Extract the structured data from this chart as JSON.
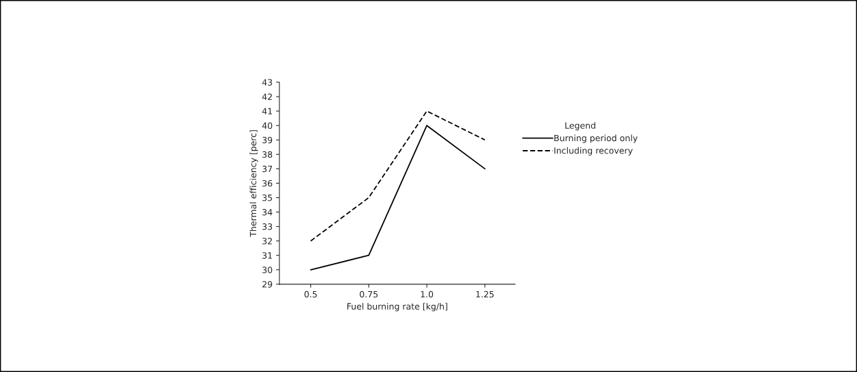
{
  "chart_data": {
    "type": "line",
    "xlabel": "Fuel burning rate [kg/h]",
    "ylabel": "Thermal efficiency [perc]",
    "legend_title": "Legend",
    "x": [
      0.5,
      0.75,
      1.0,
      1.25
    ],
    "series": [
      {
        "name": "Burning period only",
        "color": "#000000",
        "line_style": "solid",
        "values": [
          30,
          31,
          40,
          37
        ]
      },
      {
        "name": "Including recovery",
        "color": "#000000",
        "line_style": "dashed",
        "values": [
          32,
          35,
          41,
          39
        ]
      }
    ],
    "xlim": [
      0.365,
      1.38
    ],
    "xticks": [
      0.5,
      0.75,
      {
        "value": 1.0,
        "label": "1.0"
      },
      1.25
    ],
    "ylim": [
      29,
      43
    ],
    "yticks": [
      29,
      30,
      31,
      32,
      33,
      34,
      35,
      36,
      37,
      38,
      39,
      40,
      41,
      42,
      43
    ],
    "grid": false,
    "legend": "right",
    "marker": "none"
  }
}
